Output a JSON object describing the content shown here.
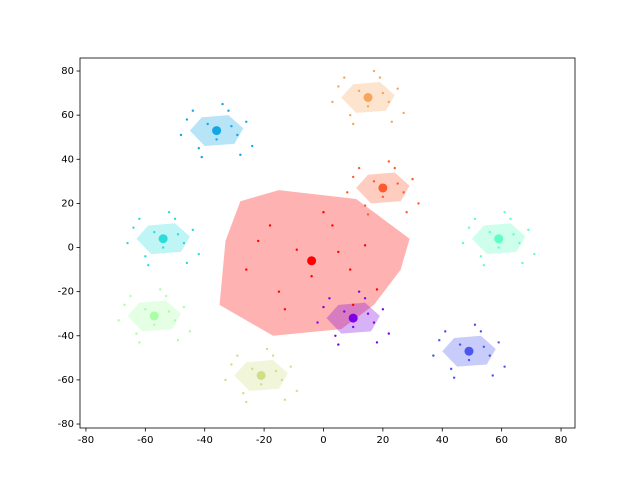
{
  "chart_data": {
    "type": "scatter",
    "xlim": [
      -82,
      84.7
    ],
    "ylim": [
      -81.8,
      85.9
    ],
    "xticks": [
      -80,
      -60,
      -40,
      -20,
      0,
      20,
      40,
      60,
      80
    ],
    "yticks": [
      -80,
      -60,
      -40,
      -20,
      0,
      20,
      40,
      60,
      80
    ],
    "series": [
      {
        "color": "#12a6e3",
        "center_x": -36,
        "center_y": 53,
        "hull_x": [
          -45,
          -41,
          -32,
          -27,
          -30,
          -40
        ],
        "hull_y": [
          53,
          59,
          60,
          54,
          47,
          46
        ],
        "x": [
          -46,
          -42,
          -39,
          -36,
          -32,
          -29,
          -26,
          -48,
          -34,
          -41,
          -24,
          -31,
          -44,
          -28
        ],
        "y": [
          58,
          45,
          56,
          49,
          62,
          51,
          57,
          51,
          65,
          41,
          46,
          55,
          62,
          42
        ]
      },
      {
        "color": "#f8a45c",
        "center_x": 15,
        "center_y": 68,
        "hull_x": [
          6,
          10,
          19,
          24,
          21,
          11
        ],
        "hull_y": [
          68,
          74,
          75,
          69,
          62,
          61
        ],
        "x": [
          5,
          9,
          12,
          15,
          19,
          22,
          25,
          3,
          17,
          10,
          27,
          20,
          7,
          23
        ],
        "y": [
          73,
          60,
          71,
          64,
          77,
          66,
          72,
          66,
          80,
          56,
          61,
          70,
          77,
          57
        ]
      },
      {
        "color": "#ff5a2e",
        "center_x": 20,
        "center_y": 27,
        "hull_x": [
          11,
          15,
          24,
          29,
          26,
          16
        ],
        "hull_y": [
          27,
          33,
          34,
          28,
          21,
          20
        ],
        "x": [
          10,
          14,
          17,
          20,
          24,
          27,
          30,
          8,
          22,
          15,
          32,
          25,
          12,
          28
        ],
        "y": [
          32,
          19,
          30,
          23,
          36,
          25,
          31,
          25,
          39,
          15,
          20,
          29,
          36,
          16
        ]
      },
      {
        "color": "#2adddd",
        "center_x": -54,
        "center_y": 4,
        "hull_x": [
          -63,
          -59,
          -50,
          -45,
          -48,
          -58
        ],
        "hull_y": [
          4,
          10,
          11,
          5,
          -2,
          -3
        ],
        "x": [
          -64,
          -60,
          -57,
          -54,
          -50,
          -47,
          -44,
          -66,
          -52,
          -59,
          -42,
          -49,
          -62,
          -46
        ],
        "y": [
          9,
          -4,
          7,
          0,
          13,
          2,
          8,
          2,
          16,
          -8,
          -3,
          6,
          13,
          -7
        ]
      },
      {
        "color": "#5effc4",
        "center_x": 59,
        "center_y": 4,
        "hull_x": [
          50,
          54,
          63,
          68,
          65,
          55
        ],
        "hull_y": [
          4,
          10,
          11,
          5,
          -2,
          -3
        ],
        "x": [
          49,
          53,
          56,
          59,
          63,
          66,
          69,
          47,
          61,
          54,
          71,
          64,
          51,
          67
        ],
        "y": [
          9,
          -4,
          7,
          0,
          13,
          2,
          8,
          2,
          16,
          -8,
          -3,
          6,
          13,
          -7
        ]
      },
      {
        "color": "#ff0000",
        "center_x": -4,
        "center_y": -6,
        "hull_x": [
          -28,
          -15,
          11,
          29,
          26,
          17,
          6,
          -17,
          -35,
          -33
        ],
        "hull_y": [
          21,
          26,
          22,
          4,
          -10,
          -26,
          -37,
          -40,
          -26,
          3
        ],
        "x": [
          -22,
          -15,
          -9,
          -4,
          3,
          9,
          14,
          -26,
          0,
          -13,
          18,
          5,
          -18,
          10
        ],
        "y": [
          3,
          -20,
          -1,
          -13,
          10,
          -10,
          1,
          -10,
          16,
          -28,
          -19,
          -2,
          10,
          -26
        ]
      },
      {
        "color": "#7f00e6",
        "center_x": 10,
        "center_y": -32,
        "hull_x": [
          1,
          5,
          14,
          19,
          16,
          6
        ],
        "hull_y": [
          -32,
          -26,
          -25,
          -31,
          -38,
          -39
        ],
        "x": [
          0,
          4,
          7,
          10,
          14,
          17,
          20,
          -2,
          12,
          5,
          22,
          15,
          2,
          18
        ],
        "y": [
          -27,
          -40,
          -29,
          -36,
          -23,
          -34,
          -28,
          -34,
          -20,
          -44,
          -39,
          -30,
          -23,
          -43
        ]
      },
      {
        "color": "#a8ffa8",
        "center_x": -57,
        "center_y": -31,
        "hull_x": [
          -66,
          -62,
          -53,
          -48,
          -51,
          -61
        ],
        "hull_y": [
          -31,
          -25,
          -24,
          -30,
          -37,
          -38
        ],
        "x": [
          -67,
          -63,
          -60,
          -57,
          -53,
          -50,
          -47,
          -69,
          -55,
          -62,
          -45,
          -52,
          -65,
          -49
        ],
        "y": [
          -26,
          -39,
          -28,
          -35,
          -22,
          -33,
          -27,
          -33,
          -19,
          -43,
          -38,
          -29,
          -22,
          -42
        ]
      },
      {
        "color": "#4a56ee",
        "center_x": 49,
        "center_y": -47,
        "hull_x": [
          40,
          44,
          53,
          58,
          55,
          45
        ],
        "hull_y": [
          -47,
          -41,
          -40,
          -46,
          -53,
          -54
        ],
        "x": [
          39,
          43,
          46,
          49,
          53,
          56,
          59,
          37,
          51,
          44,
          61,
          54,
          41,
          57
        ],
        "y": [
          -42,
          -55,
          -44,
          -51,
          -38,
          -49,
          -43,
          -49,
          -35,
          -59,
          -54,
          -45,
          -38,
          -58
        ]
      },
      {
        "color": "#d2de86",
        "center_x": -21,
        "center_y": -58,
        "hull_x": [
          -30,
          -26,
          -17,
          -12,
          -15,
          -25
        ],
        "hull_y": [
          -58,
          -52,
          -51,
          -57,
          -64,
          -65
        ],
        "x": [
          -31,
          -27,
          -24,
          -21,
          -17,
          -14,
          -11,
          -33,
          -19,
          -26,
          -9,
          -16,
          -29,
          -13
        ],
        "y": [
          -53,
          -66,
          -55,
          -62,
          -49,
          -60,
          -54,
          -60,
          -46,
          -70,
          -65,
          -56,
          -49,
          -69
        ]
      }
    ]
  }
}
